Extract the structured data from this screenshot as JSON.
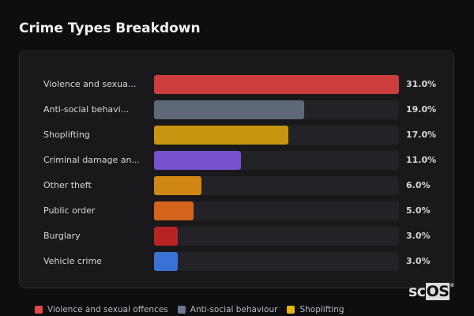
{
  "chart_data": {
    "type": "bar",
    "orientation": "horizontal",
    "title": "Crime Types Breakdown",
    "categories": [
      "Violence and sexua...",
      "Anti-social behavi...",
      "Shoplifting",
      "Criminal damage an...",
      "Other theft",
      "Public order",
      "Burglary",
      "Vehicle crime"
    ],
    "values": [
      31.0,
      19.0,
      17.0,
      11.0,
      6.0,
      5.0,
      3.0,
      3.0
    ],
    "value_labels": [
      "31.0%",
      "19.0%",
      "17.0%",
      "11.0%",
      "6.0%",
      "5.0%",
      "3.0%",
      "3.0%"
    ],
    "colors": [
      "#cc3e3e",
      "#5e6878",
      "#c8960e",
      "#7652cf",
      "#cf8614",
      "#d4641c",
      "#b82424",
      "#3a72d4"
    ],
    "xlim": [
      0,
      31
    ],
    "grid": false,
    "legend_position": "bottom",
    "legend": [
      {
        "label": "Violence and sexual offences",
        "color": "#e04848"
      },
      {
        "label": "Anti-social behaviour",
        "color": "#6b778b"
      },
      {
        "label": "Shoplifting",
        "color": "#e6b40c"
      }
    ]
  },
  "watermark": "scOS"
}
